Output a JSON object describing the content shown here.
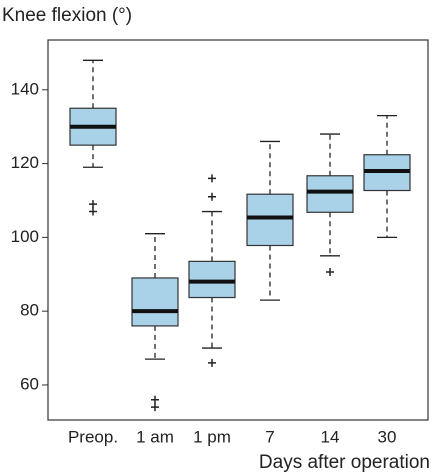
{
  "chart_data": {
    "type": "box",
    "title": "Knee flexion (°)",
    "x_label": "Days after operation",
    "categories": [
      "Preop.",
      "1 am",
      "1 pm",
      "7",
      "14",
      "30"
    ],
    "color": "#a9d1e7",
    "boxes": [
      {
        "whisker_low": 119,
        "q1": 125,
        "median": 130,
        "q3": 135,
        "whisker_high": 148,
        "outliers": [
          109,
          107
        ]
      },
      {
        "whisker_low": 67,
        "q1": 76,
        "median": 80,
        "q3": 89,
        "whisker_high": 101,
        "outliers": [
          56,
          54
        ]
      },
      {
        "whisker_low": 70,
        "q1": 83.7,
        "median": 88,
        "q3": 93.5,
        "whisker_high": 107,
        "outliers": [
          116,
          111,
          66
        ]
      },
      {
        "whisker_low": 83,
        "q1": 97.8,
        "median": 105.4,
        "q3": 111.7,
        "whisker_high": 126,
        "outliers": []
      },
      {
        "whisker_low": 95,
        "q1": 106.8,
        "median": 112.4,
        "q3": 116.7,
        "whisker_high": 128,
        "outliers": [
          90.6
        ]
      },
      {
        "whisker_low": 100,
        "q1": 112.7,
        "median": 118,
        "q3": 122.4,
        "whisker_high": 133,
        "outliers": []
      }
    ],
    "ylim": [
      50.5,
      153.5
    ],
    "yticks": [
      60,
      80,
      100,
      120,
      140
    ],
    "grid": false
  }
}
